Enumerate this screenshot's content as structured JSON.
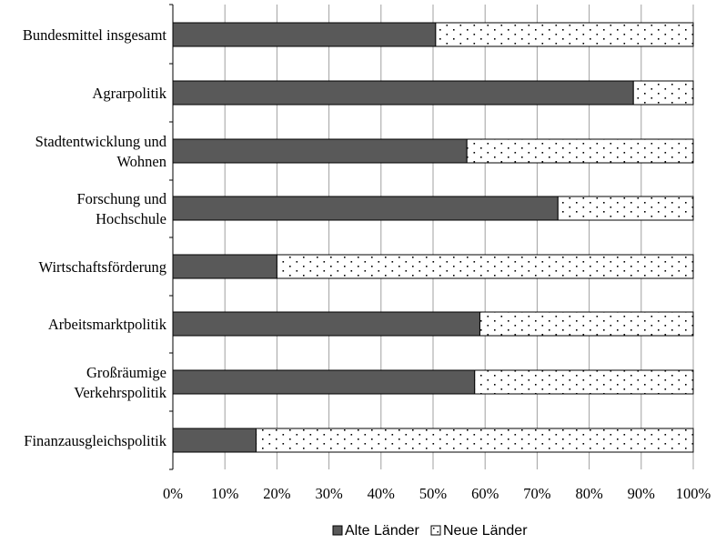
{
  "chart_data": {
    "type": "bar",
    "orientation": "horizontal",
    "stacked": true,
    "percent_stacked": true,
    "categories": [
      [
        "Bundesmittel insgesamt"
      ],
      [
        "Agrarpolitik"
      ],
      [
        "Stadtentwicklung und",
        "Wohnen"
      ],
      [
        "Forschung und",
        "Hochschule"
      ],
      [
        "Wirtschaftsförderung"
      ],
      [
        "Arbeitsmarktpolitik"
      ],
      [
        "Großräumige",
        "Verkehrspolitik"
      ],
      [
        "Finanzausgleichspolitik"
      ]
    ],
    "series": [
      {
        "name": "Alte Länder",
        "values": [
          50.5,
          88.5,
          56.5,
          74,
          20,
          59,
          58,
          16
        ],
        "color": "#595959",
        "pattern": "solid"
      },
      {
        "name": "Neue Länder",
        "values": [
          49.5,
          11.5,
          43.5,
          26,
          80,
          41,
          42,
          84
        ],
        "color": "#ffffff",
        "pattern": "dotted"
      }
    ],
    "x_ticks": [
      "0%",
      "10%",
      "20%",
      "30%",
      "40%",
      "50%",
      "60%",
      "70%",
      "80%",
      "90%",
      "100%"
    ],
    "xlim": [
      0,
      100
    ],
    "grid": "vertical",
    "legend_position": "bottom"
  }
}
